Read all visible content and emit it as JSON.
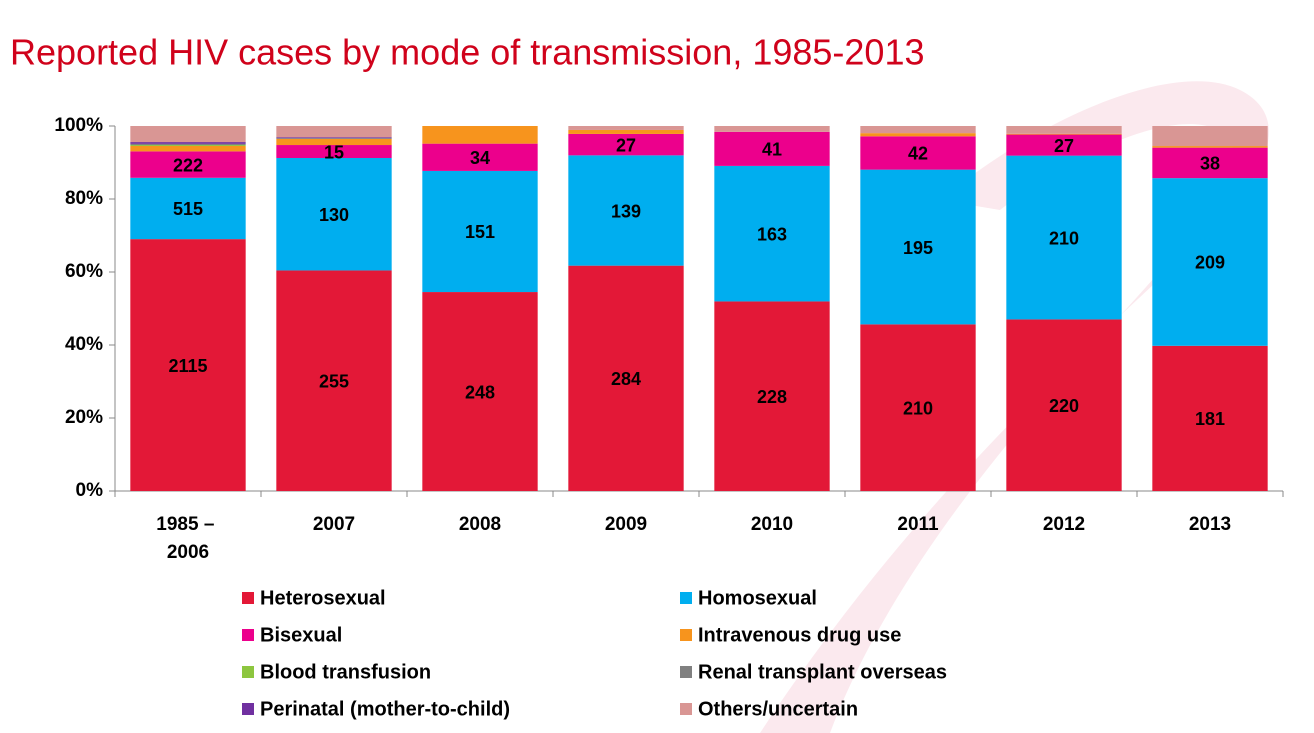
{
  "chart_data": {
    "type": "bar",
    "stacked": "percent",
    "title": "Reported HIV cases by mode of transmission, 1985-2013",
    "categories": [
      "1985 – 2006",
      "2007",
      "2008",
      "2009",
      "2010",
      "2011",
      "2012",
      "2013"
    ],
    "series": [
      {
        "name": "Heterosexual",
        "color": "#e31837",
        "labels": true,
        "values": [
          2115,
          255,
          248,
          284,
          228,
          210,
          220,
          181
        ]
      },
      {
        "name": "Homosexual",
        "color": "#00aeef",
        "labels": true,
        "values": [
          515,
          130,
          151,
          139,
          163,
          195,
          210,
          209
        ]
      },
      {
        "name": "Bisexual",
        "color": "#ec008c",
        "labels": true,
        "values": [
          222,
          15,
          34,
          27,
          41,
          42,
          27,
          38
        ]
      },
      {
        "name": "Intravenous drug use",
        "color": "#f7941d",
        "labels": false,
        "values": [
          45,
          7,
          22,
          5,
          0,
          4,
          1,
          2
        ]
      },
      {
        "name": "Blood transfusion",
        "color": "#8dc63f",
        "labels": false,
        "values": [
          8,
          0,
          0,
          0,
          0,
          0,
          0,
          0
        ]
      },
      {
        "name": "Renal transplant overseas",
        "color": "#808080",
        "labels": false,
        "values": [
          10,
          1,
          0,
          0,
          0,
          0,
          0,
          0
        ]
      },
      {
        "name": "Perinatal (mother-to-child)",
        "color": "#7030a0",
        "labels": false,
        "values": [
          15,
          1,
          0,
          0,
          0,
          0,
          0,
          0
        ]
      },
      {
        "name": "Others/uncertain",
        "color": "#d99694",
        "labels": false,
        "values": [
          135,
          13,
          0,
          5,
          7,
          9,
          10,
          25
        ]
      }
    ],
    "ylim": [
      0,
      100
    ],
    "yticks": [
      {
        "value": 0,
        "label": "0%"
      },
      {
        "value": 20,
        "label": "20%"
      },
      {
        "value": 40,
        "label": "40%"
      },
      {
        "value": 60,
        "label": "60%"
      },
      {
        "value": 80,
        "label": "80%"
      },
      {
        "value": 100,
        "label": "100%"
      }
    ],
    "grid": false,
    "legend": "bottom"
  }
}
